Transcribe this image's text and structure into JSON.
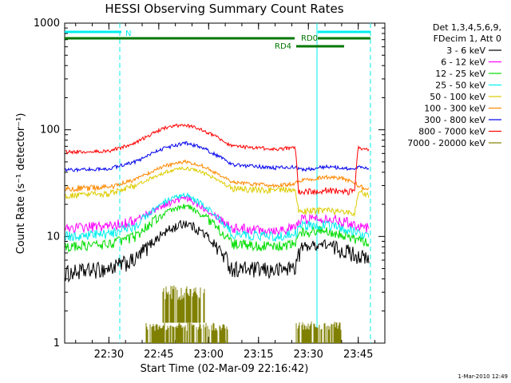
{
  "chart_data": {
    "type": "line",
    "title": "HESSI Observing Summary Count Rates",
    "xlabel": "Start Time (02-Mar-09 22:16:42)",
    "ylabel": "Count Rate (s⁻¹ detector⁻¹)",
    "y_scale": "log",
    "ylim": [
      1,
      1000
    ],
    "x_range_minutes": [
      16.7,
      113.0
    ],
    "x_tick_labels": [
      {
        "t": 30,
        "label": "22:30"
      },
      {
        "t": 45,
        "label": "22:45"
      },
      {
        "t": 60,
        "label": "23:00"
      },
      {
        "t": 75,
        "label": "23:15"
      },
      {
        "t": 90,
        "label": "23:30"
      },
      {
        "t": 105,
        "label": "23:45"
      }
    ],
    "y_tick_labels": [
      "1",
      "10",
      "100",
      "1000"
    ],
    "legend_header": [
      "Det 1,3,4,5,6,9,",
      "FDecim 1, Att 0"
    ],
    "series": [
      {
        "name": "3 - 6 keV",
        "color": "#000000",
        "values_by_time": [
          [
            16.7,
            4.5
          ],
          [
            30,
            5.0
          ],
          [
            38,
            6.0
          ],
          [
            47,
            11.0
          ],
          [
            53,
            13.5
          ],
          [
            58,
            11.0
          ],
          [
            67,
            5.0
          ],
          [
            80,
            4.8
          ],
          [
            86,
            5.2
          ],
          [
            88,
            8.0
          ],
          [
            95,
            8.5
          ],
          [
            100,
            7.5
          ],
          [
            106,
            6.5
          ],
          [
            110,
            5.2
          ],
          [
            112,
            5.0
          ]
        ]
      },
      {
        "name": "6 - 12 keV",
        "color": "#ff00ff",
        "values_by_time": [
          [
            16.7,
            12.0
          ],
          [
            30,
            12.5
          ],
          [
            38,
            14.0
          ],
          [
            47,
            20.0
          ],
          [
            53,
            23.0
          ],
          [
            58,
            19.0
          ],
          [
            67,
            12.0
          ],
          [
            80,
            11.5
          ],
          [
            86,
            12.0
          ],
          [
            88,
            14.5
          ],
          [
            95,
            15.0
          ],
          [
            100,
            14.0
          ],
          [
            106,
            12.5
          ],
          [
            110,
            11.5
          ],
          [
            112,
            11.0
          ]
        ]
      },
      {
        "name": "12 - 25 keV",
        "color": "#00dd00",
        "values_by_time": [
          [
            16.7,
            8.0
          ],
          [
            30,
            8.5
          ],
          [
            38,
            10.0
          ],
          [
            47,
            16.5
          ],
          [
            53,
            19.5
          ],
          [
            58,
            16.0
          ],
          [
            67,
            8.5
          ],
          [
            80,
            8.0
          ],
          [
            86,
            8.5
          ],
          [
            88,
            11.0
          ],
          [
            95,
            11.5
          ],
          [
            100,
            10.5
          ],
          [
            106,
            9.0
          ],
          [
            110,
            8.0
          ],
          [
            112,
            7.5
          ]
        ]
      },
      {
        "name": "25 - 50 keV",
        "color": "#00eeee",
        "values_by_time": [
          [
            16.7,
            10.0
          ],
          [
            30,
            10.5
          ],
          [
            38,
            12.5
          ],
          [
            47,
            21.0
          ],
          [
            53,
            24.5
          ],
          [
            58,
            20.0
          ],
          [
            67,
            10.5
          ],
          [
            80,
            10.0
          ],
          [
            86,
            10.5
          ],
          [
            88,
            12.5
          ],
          [
            95,
            13.0
          ],
          [
            100,
            12.0
          ],
          [
            106,
            10.5
          ],
          [
            110,
            10.0
          ],
          [
            112,
            9.5
          ]
        ]
      },
      {
        "name": "50 - 100 keV",
        "color": "#ddcc00",
        "values_by_time": [
          [
            16.7,
            24.0
          ],
          [
            30,
            25.0
          ],
          [
            38,
            30.0
          ],
          [
            47,
            40.0
          ],
          [
            53,
            44.0
          ],
          [
            58,
            40.0
          ],
          [
            67,
            28.0
          ],
          [
            80,
            27.0
          ],
          [
            86,
            28.0
          ],
          [
            87,
            17.0
          ],
          [
            95,
            17.5
          ],
          [
            100,
            17.0
          ],
          [
            104,
            16.5
          ],
          [
            105,
            26.0
          ],
          [
            110,
            24.0
          ],
          [
            112,
            23.0
          ]
        ]
      },
      {
        "name": "100 - 300 keV",
        "color": "#ff8800",
        "values_by_time": [
          [
            16.7,
            28.0
          ],
          [
            30,
            29.0
          ],
          [
            38,
            34.0
          ],
          [
            47,
            46.0
          ],
          [
            53,
            50.0
          ],
          [
            58,
            46.0
          ],
          [
            67,
            32.0
          ],
          [
            80,
            30.0
          ],
          [
            86,
            31.0
          ],
          [
            87,
            33.0
          ],
          [
            95,
            36.0
          ],
          [
            100,
            35.0
          ],
          [
            104,
            32.0
          ],
          [
            105,
            30.0
          ],
          [
            110,
            28.0
          ],
          [
            112,
            27.0
          ]
        ]
      },
      {
        "name": "300 - 800 keV",
        "color": "#0000ee",
        "values_by_time": [
          [
            16.7,
            42.0
          ],
          [
            30,
            43.0
          ],
          [
            38,
            50.0
          ],
          [
            47,
            68.0
          ],
          [
            53,
            75.0
          ],
          [
            58,
            68.0
          ],
          [
            67,
            47.0
          ],
          [
            80,
            44.0
          ],
          [
            86,
            45.0
          ],
          [
            88,
            42.0
          ],
          [
            95,
            45.0
          ],
          [
            100,
            44.0
          ],
          [
            104,
            42.0
          ],
          [
            105,
            46.0
          ],
          [
            110,
            42.0
          ],
          [
            112,
            40.0
          ]
        ]
      },
      {
        "name": "800 - 7000 keV",
        "color": "#ff0000",
        "values_by_time": [
          [
            16.7,
            62.0
          ],
          [
            30,
            63.0
          ],
          [
            38,
            75.0
          ],
          [
            47,
            105.0
          ],
          [
            53,
            112.0
          ],
          [
            58,
            100.0
          ],
          [
            67,
            70.0
          ],
          [
            80,
            66.0
          ],
          [
            86,
            68.0
          ],
          [
            87,
            26.0
          ],
          [
            95,
            27.0
          ],
          [
            100,
            26.5
          ],
          [
            104,
            26.0
          ],
          [
            105,
            68.0
          ],
          [
            110,
            62.0
          ],
          [
            112,
            58.0
          ]
        ]
      },
      {
        "name": "7000 - 20000 keV",
        "color": "#808000",
        "values_by_time": []
      }
    ],
    "flags": [
      {
        "label": "N",
        "color": "#00eeee"
      },
      {
        "label": "RD0",
        "color": "#007700"
      },
      {
        "label": "RD4",
        "color": "#007700"
      }
    ],
    "footer_date": "1-Mar-2010 12:49"
  }
}
